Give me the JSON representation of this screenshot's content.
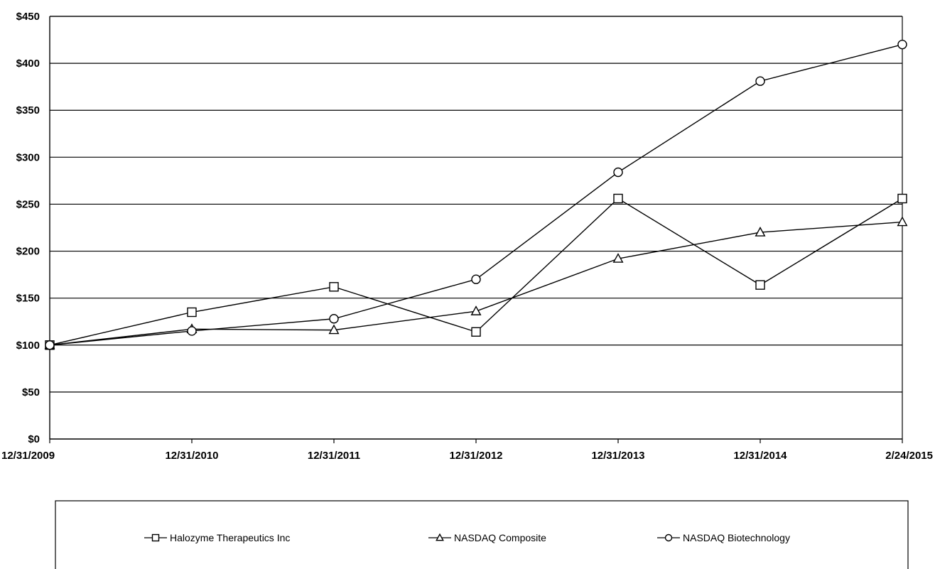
{
  "chart_data": {
    "type": "line",
    "categories": [
      "12/31/2009",
      "12/31/2010",
      "12/31/2011",
      "12/31/2012",
      "12/31/2013",
      "12/31/2014",
      "2/24/2015"
    ],
    "y_tick_labels": [
      "$0",
      "$50",
      "$100",
      "$150",
      "$200",
      "$250",
      "$300",
      "$350",
      "$400",
      "$450"
    ],
    "ylim": [
      0,
      450
    ],
    "grid": true,
    "legend_position": "bottom",
    "line_color": "#000000",
    "series": [
      {
        "name": "Halozyme Therapeutics Inc",
        "marker": "square",
        "values": [
          100,
          135,
          162,
          114,
          256,
          164,
          256
        ]
      },
      {
        "name": "NASDAQ Composite",
        "marker": "triangle",
        "values": [
          100,
          117,
          116,
          136,
          192,
          220,
          231
        ]
      },
      {
        "name": "NASDAQ Biotechnology",
        "marker": "circle",
        "values": [
          100,
          115,
          128,
          170,
          284,
          381,
          420
        ]
      }
    ]
  }
}
